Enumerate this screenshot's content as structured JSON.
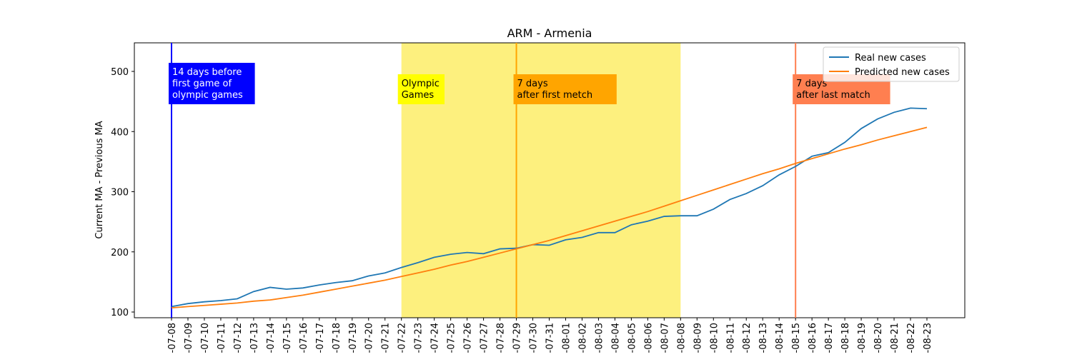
{
  "chart_data": {
    "type": "line",
    "title": "ARM - Armenia",
    "y_label": "Current MA - Previous MA",
    "categories": [
      "-07-08",
      "-07-09",
      "-07-10",
      "-07-11",
      "-07-12",
      "-07-13",
      "-07-14",
      "-07-15",
      "-07-16",
      "-07-17",
      "-07-18",
      "-07-19",
      "-07-20",
      "-07-21",
      "-07-22",
      "-07-23",
      "-07-24",
      "-07-25",
      "-07-26",
      "-07-27",
      "-07-28",
      "-07-29",
      "-07-30",
      "-07-31",
      "-08-01",
      "-08-02",
      "-08-03",
      "-08-04",
      "-08-05",
      "-08-06",
      "-08-07",
      "-08-08",
      "-08-09",
      "-08-10",
      "-08-11",
      "-08-12",
      "-08-13",
      "-08-14",
      "-08-15",
      "-08-16",
      "-08-17",
      "-08-18",
      "-08-19",
      "-08-20",
      "-08-21",
      "-08-22",
      "-08-23"
    ],
    "series": [
      {
        "name": "Real new cases",
        "color": "#1f77b4",
        "values": [
          109,
          114,
          117,
          119,
          122,
          134,
          141,
          138,
          140,
          145,
          149,
          152,
          160,
          165,
          174,
          182,
          191,
          196,
          199,
          197,
          205,
          206,
          212,
          211,
          220,
          224,
          232,
          232,
          245,
          251,
          259,
          260,
          260,
          271,
          287,
          297,
          310,
          328,
          342,
          359,
          365,
          382,
          405,
          421,
          432,
          439,
          438
        ]
      },
      {
        "name": "Predicted new cases",
        "color": "#ff7f0e",
        "values": [
          107,
          109,
          111,
          113,
          115,
          118,
          120,
          124,
          128,
          133,
          138,
          143,
          148,
          153,
          159,
          165,
          171,
          178,
          184,
          191,
          198,
          205,
          212,
          219,
          227,
          235,
          243,
          251,
          259,
          267,
          276,
          285,
          294,
          303,
          312,
          321,
          330,
          338,
          347,
          355,
          363,
          371,
          378,
          386,
          393,
          400,
          407
        ]
      }
    ],
    "ylim": [
      90.5,
      547.5
    ],
    "yticks": [
      100,
      200,
      300,
      400,
      500
    ],
    "legend": "upper right",
    "span": {
      "from": "-07-22",
      "to": "-08-08",
      "color": "#fdf07e",
      "label": [
        "Olympic",
        "Games"
      ],
      "label_color": "#ffff00",
      "text_color": "#000000"
    },
    "vlines": [
      {
        "at": "-07-08",
        "color": "#0000ff",
        "label": [
          "14 days before",
          "first game of",
          "olympic games"
        ],
        "label_color": "#0000ff",
        "text_color": "#ffffff"
      },
      {
        "at": "-07-29",
        "color": "#ffa500",
        "label": [
          "7 days",
          "after first metch"
        ],
        "label_color": "#ffa500",
        "text_color": "#000000"
      },
      {
        "at": "-08-15",
        "color": "#ff7f50",
        "label": [
          "7 days",
          "after last match"
        ],
        "label_color": "#ff7f50",
        "text_color": "#000000"
      }
    ]
  }
}
